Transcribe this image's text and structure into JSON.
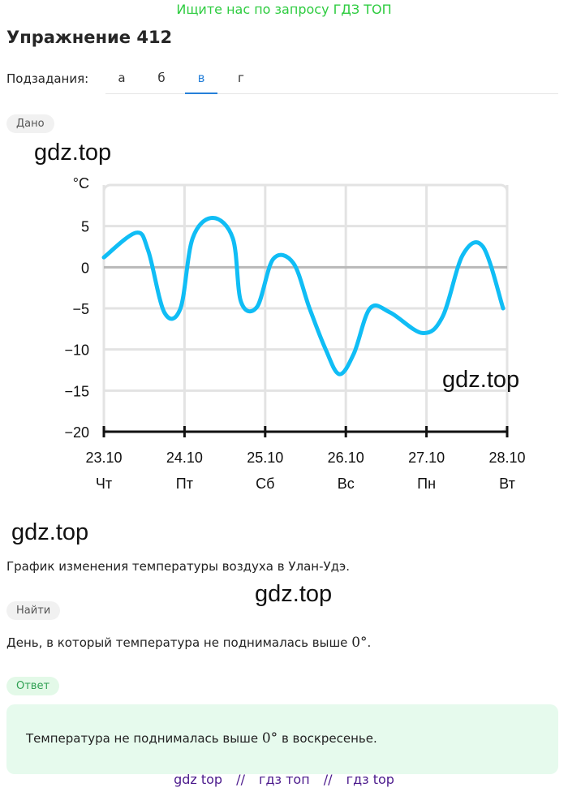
{
  "promo_top": "Ищите нас по запросу ГДЗ ТОП",
  "exercise_title": "Упражнение 412",
  "subtasks": {
    "label": "Подзадания:",
    "tabs": [
      "а",
      "б",
      "в",
      "г"
    ],
    "active": "в"
  },
  "given_label": "Дано",
  "find_label": "Найти",
  "answer_label": "Ответ",
  "watermark": "gdz.top",
  "caption": "График изменения температуры воздуха в Улан-Удэ.",
  "find_text": "День, в который температура не поднималась выше",
  "find_deg": "0°",
  "find_end": ".",
  "answer_text_before": "Температура не поднималась выше",
  "answer_deg": "0°",
  "answer_text_after": "в воскресенье.",
  "footer": [
    "gdz top",
    "//",
    "гдз топ",
    "//",
    "гдз top"
  ],
  "colors": {
    "curve": "#10bdf5",
    "grid": "#e3e3e3",
    "active_tab": "#2680d9",
    "answer_bg": "#e6faed"
  },
  "chart_data": {
    "type": "line",
    "ylabel": "°C",
    "ylim": [
      -20,
      10
    ],
    "yticks": [
      5,
      0,
      -5,
      -10,
      -15,
      -20
    ],
    "x_categories": [
      {
        "date": "23.10",
        "day": "Чт"
      },
      {
        "date": "24.10",
        "day": "Пт"
      },
      {
        "date": "25.10",
        "day": "Сб"
      },
      {
        "date": "26.10",
        "day": "Вс"
      },
      {
        "date": "27.10",
        "day": "Пн"
      },
      {
        "date": "28.10",
        "day": "Вт"
      }
    ],
    "grid": true,
    "series": [
      {
        "values": [
          [
            0,
            1.2
          ],
          [
            0.4,
            4.2
          ],
          [
            0.55,
            2.0
          ],
          [
            0.75,
            -5.5
          ],
          [
            0.95,
            -5.0
          ],
          [
            1.1,
            3.5
          ],
          [
            1.35,
            6.0
          ],
          [
            1.6,
            3.5
          ],
          [
            1.7,
            -4.2
          ],
          [
            1.9,
            -4.8
          ],
          [
            2.1,
            1.0
          ],
          [
            2.35,
            0.5
          ],
          [
            2.55,
            -5.0
          ],
          [
            2.75,
            -10.0
          ],
          [
            2.92,
            -13.0
          ],
          [
            3.1,
            -10.5
          ],
          [
            3.3,
            -5.0
          ],
          [
            3.55,
            -5.5
          ],
          [
            3.95,
            -8.0
          ],
          [
            4.2,
            -6.0
          ],
          [
            4.45,
            1.5
          ],
          [
            4.7,
            2.5
          ],
          [
            4.95,
            -5.0
          ]
        ]
      }
    ]
  }
}
